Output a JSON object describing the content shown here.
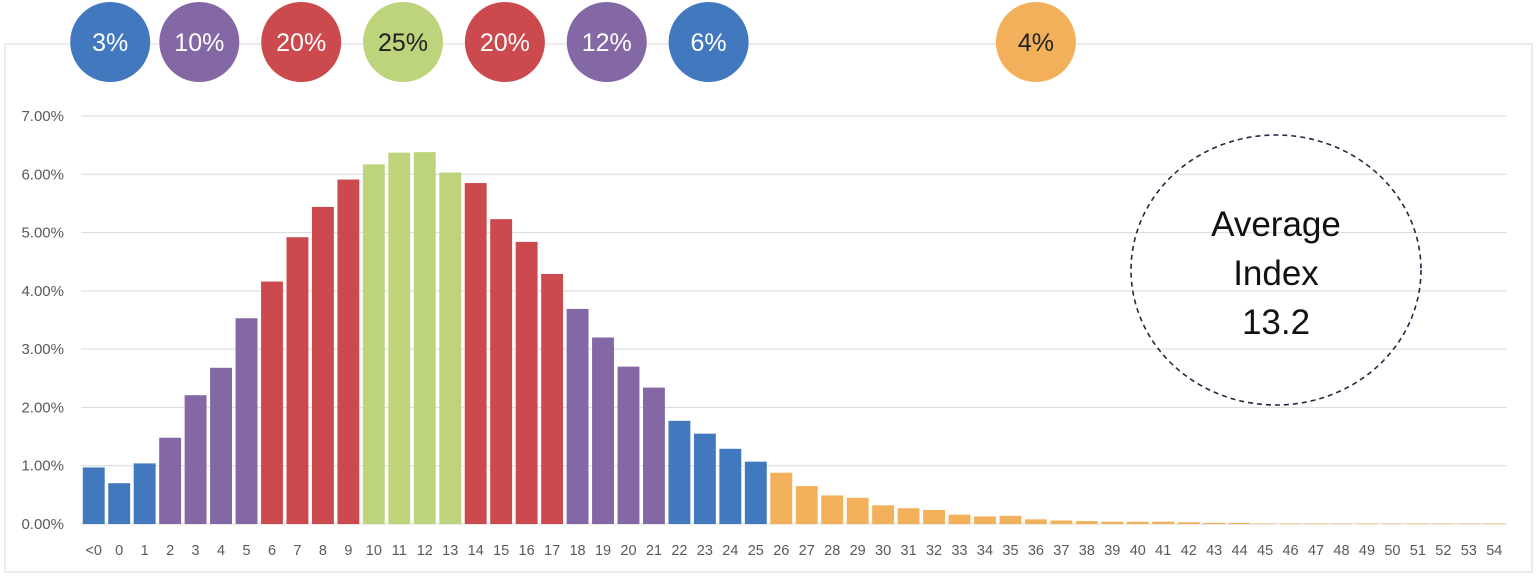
{
  "chart_data": {
    "type": "bar",
    "title": "",
    "xlabel": "",
    "ylabel": "",
    "ylim": [
      0,
      0.07
    ],
    "y_tick_labels": [
      "0.00%",
      "1.00%",
      "2.00%",
      "3.00%",
      "4.00%",
      "5.00%",
      "6.00%",
      "7.00%"
    ],
    "grid": true,
    "categories": [
      "<0",
      "0",
      "1",
      "2",
      "3",
      "4",
      "5",
      "6",
      "7",
      "8",
      "9",
      "10",
      "11",
      "12",
      "13",
      "14",
      "15",
      "16",
      "17",
      "18",
      "19",
      "20",
      "21",
      "22",
      "23",
      "24",
      "25",
      "26",
      "27",
      "28",
      "29",
      "30",
      "31",
      "32",
      "33",
      "34",
      "35",
      "36",
      "37",
      "38",
      "39",
      "40",
      "41",
      "42",
      "43",
      "44",
      "45",
      "46",
      "47",
      "48",
      "49",
      "50",
      "51",
      "52",
      "53",
      "54"
    ],
    "values": [
      0.0097,
      0.007,
      0.0104,
      0.0148,
      0.0221,
      0.0268,
      0.0353,
      0.0416,
      0.0492,
      0.0544,
      0.0591,
      0.0617,
      0.0637,
      0.0638,
      0.0603,
      0.0585,
      0.0523,
      0.0484,
      0.0429,
      0.0369,
      0.032,
      0.027,
      0.0234,
      0.0177,
      0.0155,
      0.0129,
      0.0107,
      0.0088,
      0.0065,
      0.0049,
      0.0045,
      0.0032,
      0.0027,
      0.0024,
      0.0016,
      0.0013,
      0.0014,
      0.0008,
      0.0006,
      0.0005,
      0.0004,
      0.0004,
      0.0004,
      0.0003,
      0.0002,
      0.0002,
      0.0001,
      0.0001,
      0.0001,
      0.0001,
      0.0001,
      0.0001,
      0.0001,
      0.0001,
      0.0001,
      0.0001
    ],
    "groups": [
      {
        "label": "3%",
        "color": "#4178be",
        "from": 0,
        "to": 2
      },
      {
        "label": "10%",
        "color": "#8468a6",
        "from": 3,
        "to": 6
      },
      {
        "label": "20%",
        "color": "#cc4a4d",
        "from": 7,
        "to": 10
      },
      {
        "label": "25%",
        "color": "#bdd37c",
        "from": 11,
        "to": 14
      },
      {
        "label": "20%",
        "color": "#cc4a4d",
        "from": 15,
        "to": 18
      },
      {
        "label": "12%",
        "color": "#8468a6",
        "from": 19,
        "to": 22
      },
      {
        "label": "6%",
        "color": "#4178be",
        "from": 23,
        "to": 26
      },
      {
        "label": "4%",
        "color": "#f3b05a",
        "from": 27,
        "to": 55
      }
    ],
    "annotation": {
      "lines": [
        "Average",
        "Index",
        "13.2"
      ]
    },
    "colors": {
      "grid": "#d9d9d9",
      "tick_text": "#595959",
      "frame": "#d9d9d9",
      "annotation_border": "#1f2a44"
    }
  }
}
